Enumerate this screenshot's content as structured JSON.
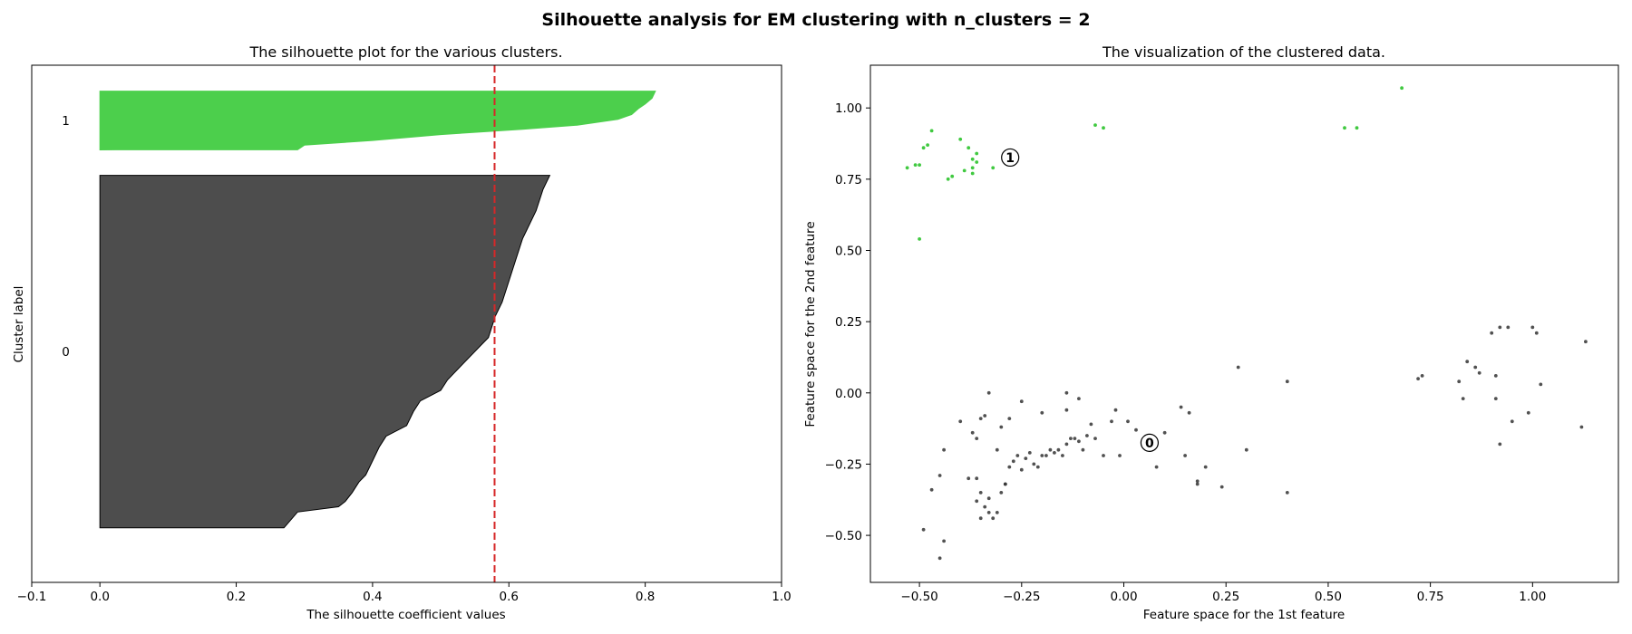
{
  "figure": {
    "suptitle": "Silhouette analysis for EM clustering with n_clusters = 2"
  },
  "chart_data": [
    {
      "type": "area",
      "title": "The silhouette plot for the various clusters.",
      "xlabel": "The silhouette coefficient values",
      "ylabel": "Cluster label",
      "xlim": [
        -0.1,
        1.0
      ],
      "xticks": [
        -0.1,
        0.0,
        0.2,
        0.4,
        0.6,
        0.8,
        1.0
      ],
      "xtick_labels": [
        "−0.1",
        "0.0",
        "0.2",
        "0.4",
        "0.6",
        "0.8",
        "1.0"
      ],
      "yticks": [],
      "average_silhouette": 0.579,
      "average_line_color": "#d62728",
      "clusters": [
        {
          "label": "0",
          "color": "#4d4d4d",
          "size": 138,
          "profile_bottom_to_top": [
            [
              0.0,
              0.27
            ],
            [
              0.045,
              0.29
            ],
            [
              0.06,
              0.35
            ],
            [
              0.075,
              0.36
            ],
            [
              0.1,
              0.37
            ],
            [
              0.13,
              0.38
            ],
            [
              0.15,
              0.39
            ],
            [
              0.19,
              0.4
            ],
            [
              0.23,
              0.41
            ],
            [
              0.26,
              0.42
            ],
            [
              0.29,
              0.45
            ],
            [
              0.33,
              0.46
            ],
            [
              0.36,
              0.47
            ],
            [
              0.39,
              0.5
            ],
            [
              0.42,
              0.51
            ],
            [
              0.46,
              0.53
            ],
            [
              0.5,
              0.55
            ],
            [
              0.52,
              0.56
            ],
            [
              0.54,
              0.57
            ],
            [
              0.6,
              0.58
            ],
            [
              0.64,
              0.59
            ],
            [
              0.7,
              0.6
            ],
            [
              0.76,
              0.61
            ],
            [
              0.82,
              0.62
            ],
            [
              0.9,
              0.64
            ],
            [
              0.96,
              0.65
            ],
            [
              1.0,
              0.66
            ]
          ]
        },
        {
          "label": "1",
          "color": "#4ccf4c",
          "size": 23,
          "profile_bottom_to_top": [
            [
              0.0,
              0.29
            ],
            [
              0.08,
              0.3
            ],
            [
              0.16,
              0.4
            ],
            [
              0.26,
              0.5
            ],
            [
              0.35,
              0.62
            ],
            [
              0.42,
              0.7
            ],
            [
              0.52,
              0.76
            ],
            [
              0.6,
              0.78
            ],
            [
              0.7,
              0.79
            ],
            [
              0.78,
              0.8
            ],
            [
              0.88,
              0.81
            ],
            [
              1.0,
              0.815
            ]
          ]
        }
      ]
    },
    {
      "type": "scatter",
      "title": "The visualization of the clustered data.",
      "xlabel": "Feature space for the 1st feature",
      "ylabel": "Feature space for the 2nd feature",
      "xlim": [
        -0.62,
        1.21
      ],
      "ylim": [
        -0.665,
        1.15
      ],
      "xticks": [
        -0.5,
        -0.25,
        0.0,
        0.25,
        0.5,
        0.75,
        1.0
      ],
      "xtick_labels": [
        "−0.50",
        "−0.25",
        "0.00",
        "0.25",
        "0.50",
        "0.75",
        "1.00"
      ],
      "yticks": [
        -0.5,
        -0.25,
        0.0,
        0.25,
        0.5,
        0.75,
        1.0
      ],
      "ytick_labels": [
        "−0.50",
        "−0.25",
        "0.00",
        "0.25",
        "0.50",
        "0.75",
        "1.00"
      ],
      "centers": [
        {
          "label": "0",
          "x": 0.063,
          "y": -0.175
        },
        {
          "label": "1",
          "x": -0.278,
          "y": 0.826
        }
      ],
      "series": [
        {
          "cluster": "1",
          "color": "#1fbf1f",
          "points": [
            [
              -0.53,
              0.79
            ],
            [
              -0.51,
              0.8
            ],
            [
              -0.5,
              0.8
            ],
            [
              -0.49,
              0.86
            ],
            [
              -0.48,
              0.87
            ],
            [
              -0.47,
              0.92
            ],
            [
              -0.4,
              0.89
            ],
            [
              -0.43,
              0.75
            ],
            [
              -0.42,
              0.76
            ],
            [
              -0.39,
              0.78
            ],
            [
              -0.38,
              0.86
            ],
            [
              -0.37,
              0.79
            ],
            [
              -0.36,
              0.84
            ],
            [
              -0.36,
              0.81
            ],
            [
              -0.37,
              0.77
            ],
            [
              -0.32,
              0.79
            ],
            [
              -0.5,
              0.54
            ],
            [
              -0.07,
              0.94
            ],
            [
              -0.05,
              0.93
            ],
            [
              0.54,
              0.93
            ],
            [
              0.57,
              0.93
            ],
            [
              0.68,
              1.07
            ],
            [
              -0.37,
              0.82
            ]
          ]
        },
        {
          "cluster": "0",
          "color": "#333333",
          "points": [
            [
              -0.33,
              0.0
            ],
            [
              -0.35,
              -0.09
            ],
            [
              -0.34,
              -0.08
            ],
            [
              -0.37,
              -0.14
            ],
            [
              -0.36,
              -0.16
            ],
            [
              -0.38,
              -0.3
            ],
            [
              -0.36,
              -0.3
            ],
            [
              -0.35,
              -0.35
            ],
            [
              -0.36,
              -0.38
            ],
            [
              -0.34,
              -0.4
            ],
            [
              -0.33,
              -0.42
            ],
            [
              -0.32,
              -0.44
            ],
            [
              -0.31,
              -0.42
            ],
            [
              -0.3,
              -0.35
            ],
            [
              -0.29,
              -0.32
            ],
            [
              -0.28,
              -0.26
            ],
            [
              -0.27,
              -0.24
            ],
            [
              -0.26,
              -0.22
            ],
            [
              -0.25,
              -0.27
            ],
            [
              -0.24,
              -0.23
            ],
            [
              -0.23,
              -0.21
            ],
            [
              -0.22,
              -0.25
            ],
            [
              -0.21,
              -0.26
            ],
            [
              -0.2,
              -0.22
            ],
            [
              -0.19,
              -0.22
            ],
            [
              -0.18,
              -0.2
            ],
            [
              -0.17,
              -0.21
            ],
            [
              -0.16,
              -0.2
            ],
            [
              -0.15,
              -0.22
            ],
            [
              -0.14,
              -0.18
            ],
            [
              -0.13,
              -0.16
            ],
            [
              -0.12,
              -0.16
            ],
            [
              -0.11,
              -0.17
            ],
            [
              -0.1,
              -0.2
            ],
            [
              -0.09,
              -0.15
            ],
            [
              -0.08,
              -0.11
            ],
            [
              -0.07,
              -0.16
            ],
            [
              -0.05,
              -0.22
            ],
            [
              -0.03,
              -0.1
            ],
            [
              -0.02,
              -0.06
            ],
            [
              -0.01,
              -0.22
            ],
            [
              0.01,
              -0.1
            ],
            [
              0.03,
              -0.13
            ],
            [
              0.08,
              -0.26
            ],
            [
              0.1,
              -0.14
            ],
            [
              0.14,
              -0.05
            ],
            [
              0.15,
              -0.22
            ],
            [
              0.16,
              -0.07
            ],
            [
              0.18,
              -0.31
            ],
            [
              0.18,
              -0.32
            ],
            [
              0.2,
              -0.26
            ],
            [
              0.24,
              -0.33
            ],
            [
              0.28,
              0.09
            ],
            [
              0.3,
              -0.2
            ],
            [
              0.4,
              0.04
            ],
            [
              0.4,
              -0.35
            ],
            [
              -0.25,
              -0.03
            ],
            [
              -0.2,
              -0.07
            ],
            [
              -0.14,
              0.0
            ],
            [
              -0.14,
              -0.06
            ],
            [
              -0.11,
              -0.02
            ],
            [
              -0.4,
              -0.1
            ],
            [
              -0.45,
              -0.29
            ],
            [
              -0.44,
              -0.2
            ],
            [
              -0.47,
              -0.34
            ],
            [
              -0.49,
              -0.48
            ],
            [
              -0.44,
              -0.52
            ],
            [
              -0.45,
              -0.58
            ],
            [
              -0.28,
              -0.09
            ],
            [
              -0.3,
              -0.12
            ],
            [
              -0.31,
              -0.2
            ],
            [
              -0.29,
              -0.32
            ],
            [
              -0.33,
              -0.37
            ],
            [
              -0.35,
              -0.44
            ],
            [
              0.72,
              0.05
            ],
            [
              0.73,
              0.06
            ],
            [
              0.82,
              0.04
            ],
            [
              0.83,
              -0.02
            ],
            [
              0.84,
              0.11
            ],
            [
              0.86,
              0.09
            ],
            [
              0.87,
              0.07
            ],
            [
              0.9,
              0.21
            ],
            [
              0.91,
              0.06
            ],
            [
              0.91,
              -0.02
            ],
            [
              0.92,
              -0.18
            ],
            [
              0.92,
              0.23
            ],
            [
              0.94,
              0.23
            ],
            [
              0.95,
              -0.1
            ],
            [
              0.99,
              -0.07
            ],
            [
              1.0,
              0.23
            ],
            [
              1.01,
              0.21
            ],
            [
              1.02,
              0.03
            ],
            [
              1.12,
              -0.12
            ],
            [
              1.13,
              0.18
            ]
          ]
        }
      ]
    }
  ]
}
